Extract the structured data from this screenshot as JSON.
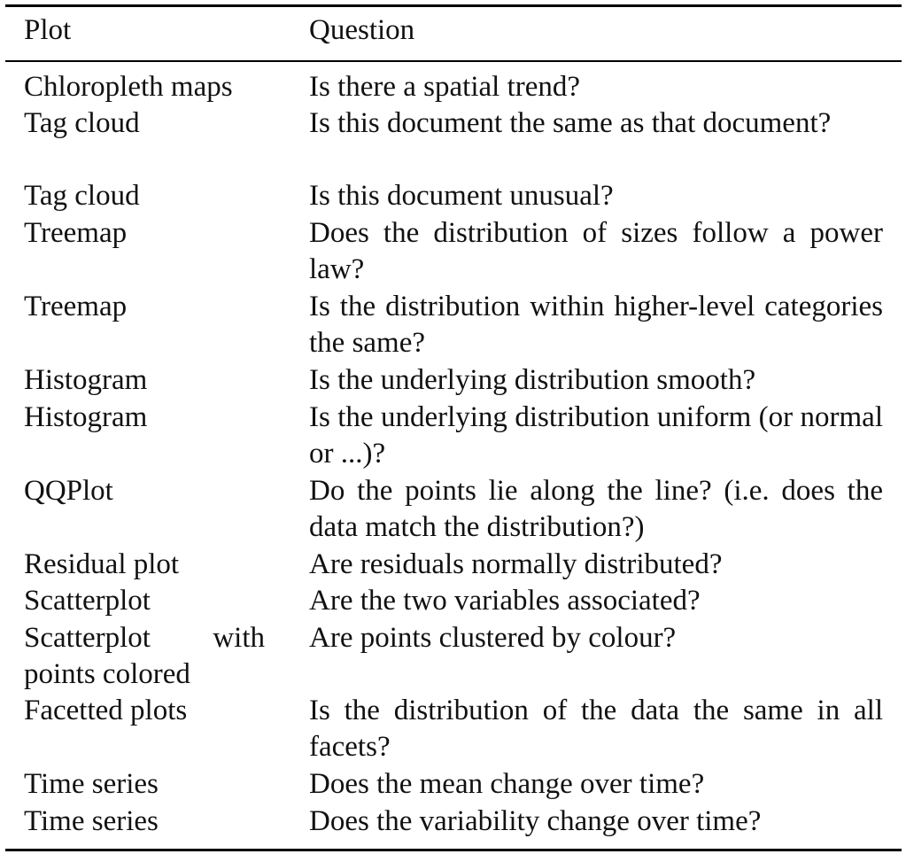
{
  "table": {
    "headers": {
      "plot": "Plot",
      "question": "Question"
    },
    "rows": [
      {
        "plot": "Chloropleth maps",
        "question": "Is there a spatial trend?"
      },
      {
        "plot": "Tag cloud",
        "question": "Is this document the same as that docu­ment?"
      },
      {
        "plot": "Tag cloud",
        "question": "Is this document unusual?"
      },
      {
        "plot": "Treemap",
        "question": "Does the distribution of sizes follow a power law?"
      },
      {
        "plot": "Treemap",
        "question": "Is the distribution within higher-level cate­gories the same?"
      },
      {
        "plot": "Histogram",
        "question": "Is the underlying distribution smooth?"
      },
      {
        "plot": "Histogram",
        "question": "Is the underlying distribution uniform (or normal or ...)?"
      },
      {
        "plot": "QQPlot",
        "question": "Do the points lie along the line? (i.e. does the data match the distribution?)"
      },
      {
        "plot": "Residual plot",
        "question": "Are residuals normally distributed?"
      },
      {
        "plot": "Scatterplot",
        "question": "Are the two variables associated?"
      },
      {
        "plot": "Scatterplot with points colored",
        "question": "Are points clustered by colour?"
      },
      {
        "plot": "Facetted plots",
        "question": "Is the distribution of the data the same in all facets?"
      },
      {
        "plot": "Time series",
        "question": "Does the mean change over time?"
      },
      {
        "plot": "Time series",
        "question": "Does the variability change over time?"
      }
    ]
  }
}
